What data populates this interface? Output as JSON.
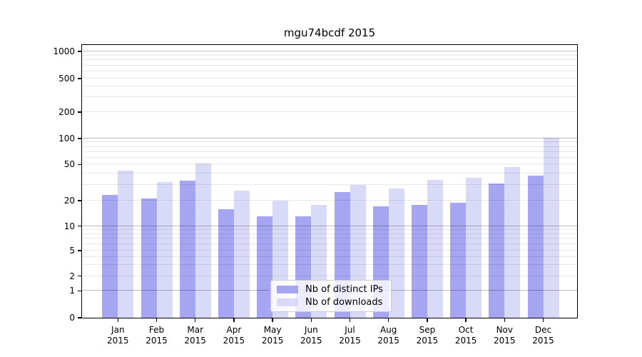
{
  "title": "mgu74bcdf 2015",
  "colors": {
    "ips": "#a5a5f2",
    "downloads": "#d9d9f8"
  },
  "legend": {
    "items": [
      {
        "label": "Nb of distinct IPs",
        "color_key": "ips"
      },
      {
        "label": "Nb of downloads",
        "color_key": "downloads"
      }
    ]
  },
  "y_axis": {
    "tick_values": [
      0,
      1,
      2,
      5,
      10,
      20,
      50,
      100,
      200,
      500,
      1000
    ],
    "tick_labels": [
      "0",
      "1",
      "2",
      "5",
      "10",
      "20",
      "50",
      "100",
      "200",
      "500",
      "1000"
    ],
    "major_gridlines": [
      1,
      10,
      100,
      1000
    ],
    "minor_gridlines": [
      2,
      3,
      4,
      5,
      6,
      7,
      8,
      9,
      20,
      30,
      40,
      50,
      60,
      70,
      80,
      90,
      200,
      300,
      400,
      500,
      600,
      700,
      800,
      900
    ]
  },
  "x_axis": {
    "months": [
      "Jan",
      "Feb",
      "Mar",
      "Apr",
      "May",
      "Jun",
      "Jul",
      "Aug",
      "Sep",
      "Oct",
      "Nov",
      "Dec"
    ],
    "year": "2015"
  },
  "chart_data": {
    "type": "bar",
    "title": "mgu74bcdf 2015",
    "categories": [
      "Jan 2015",
      "Feb 2015",
      "Mar 2015",
      "Apr 2015",
      "May 2015",
      "Jun 2015",
      "Jul 2015",
      "Aug 2015",
      "Sep 2015",
      "Oct 2015",
      "Nov 2015",
      "Dec 2015"
    ],
    "series": [
      {
        "name": "Nb of distinct IPs",
        "key": "ips",
        "values": [
          23,
          21,
          33,
          16,
          13,
          13,
          25,
          17,
          18,
          19,
          31,
          38
        ]
      },
      {
        "name": "Nb of downloads",
        "key": "downloads",
        "values": [
          43,
          32,
          51,
          26,
          20,
          18,
          30,
          27,
          34,
          36,
          47,
          102
        ]
      }
    ],
    "yscale": "symlog",
    "ylim": [
      0,
      1500
    ],
    "y_ticks": [
      0,
      1,
      2,
      5,
      10,
      20,
      50,
      100,
      200,
      500,
      1000
    ],
    "grid": true,
    "legend_position": "lower center"
  }
}
